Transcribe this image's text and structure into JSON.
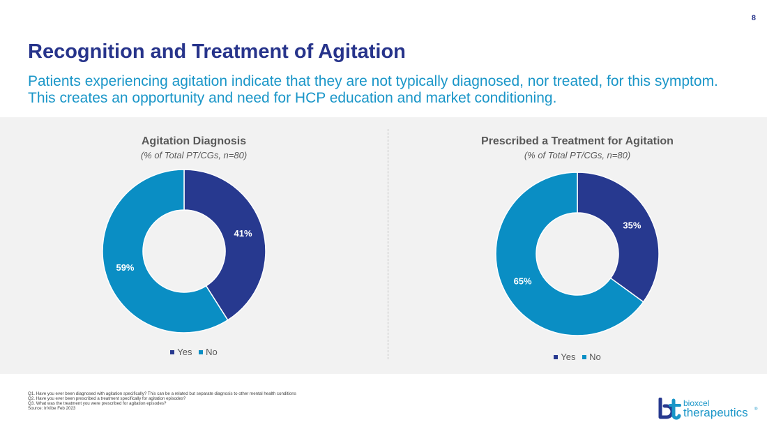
{
  "page": {
    "number": "8",
    "title": "Recognition and Treatment of Agitation",
    "subtitle": "Patients experiencing agitation indicate that they are not typically diagnosed, nor treated, for this symptom. This creates an opportunity and need for HCP education and market conditioning."
  },
  "colors": {
    "yes": "#27398f",
    "no": "#0a8ec4",
    "title": "#27348b",
    "subtitle": "#1a96c8"
  },
  "chart_data": [
    {
      "type": "pie",
      "variant": "donut",
      "title": "Agitation Diagnosis",
      "subtitle": "(% of Total PT/CGs, n=80)",
      "categories": [
        "Yes",
        "No"
      ],
      "values": [
        41,
        59
      ],
      "labels": [
        "41%",
        "59%"
      ],
      "legend": [
        "Yes",
        "No"
      ],
      "legend_position": "bottom"
    },
    {
      "type": "pie",
      "variant": "donut",
      "title": "Prescribed a Treatment for Agitation",
      "subtitle": "(% of Total PT/CGs, n=80)",
      "categories": [
        "Yes",
        "No"
      ],
      "values": [
        35,
        65
      ],
      "labels": [
        "35%",
        "65%"
      ],
      "legend": [
        "Yes",
        "No"
      ],
      "legend_position": "bottom"
    }
  ],
  "footnotes": [
    "Q1. Have you ever been diagnosed with agitation specifically? This can be a related but separate diagnosis to other mental health conditions",
    "Q2. Have you ever been prescribed a treatment specifically for agitation episodes?",
    "Q3. What was the treatment you were prescribed for agitation episodes?",
    "Source: InVibe Feb 2023"
  ],
  "logo": {
    "top": "bioxcel",
    "bottom": "therapeutics",
    "mark": "®"
  }
}
